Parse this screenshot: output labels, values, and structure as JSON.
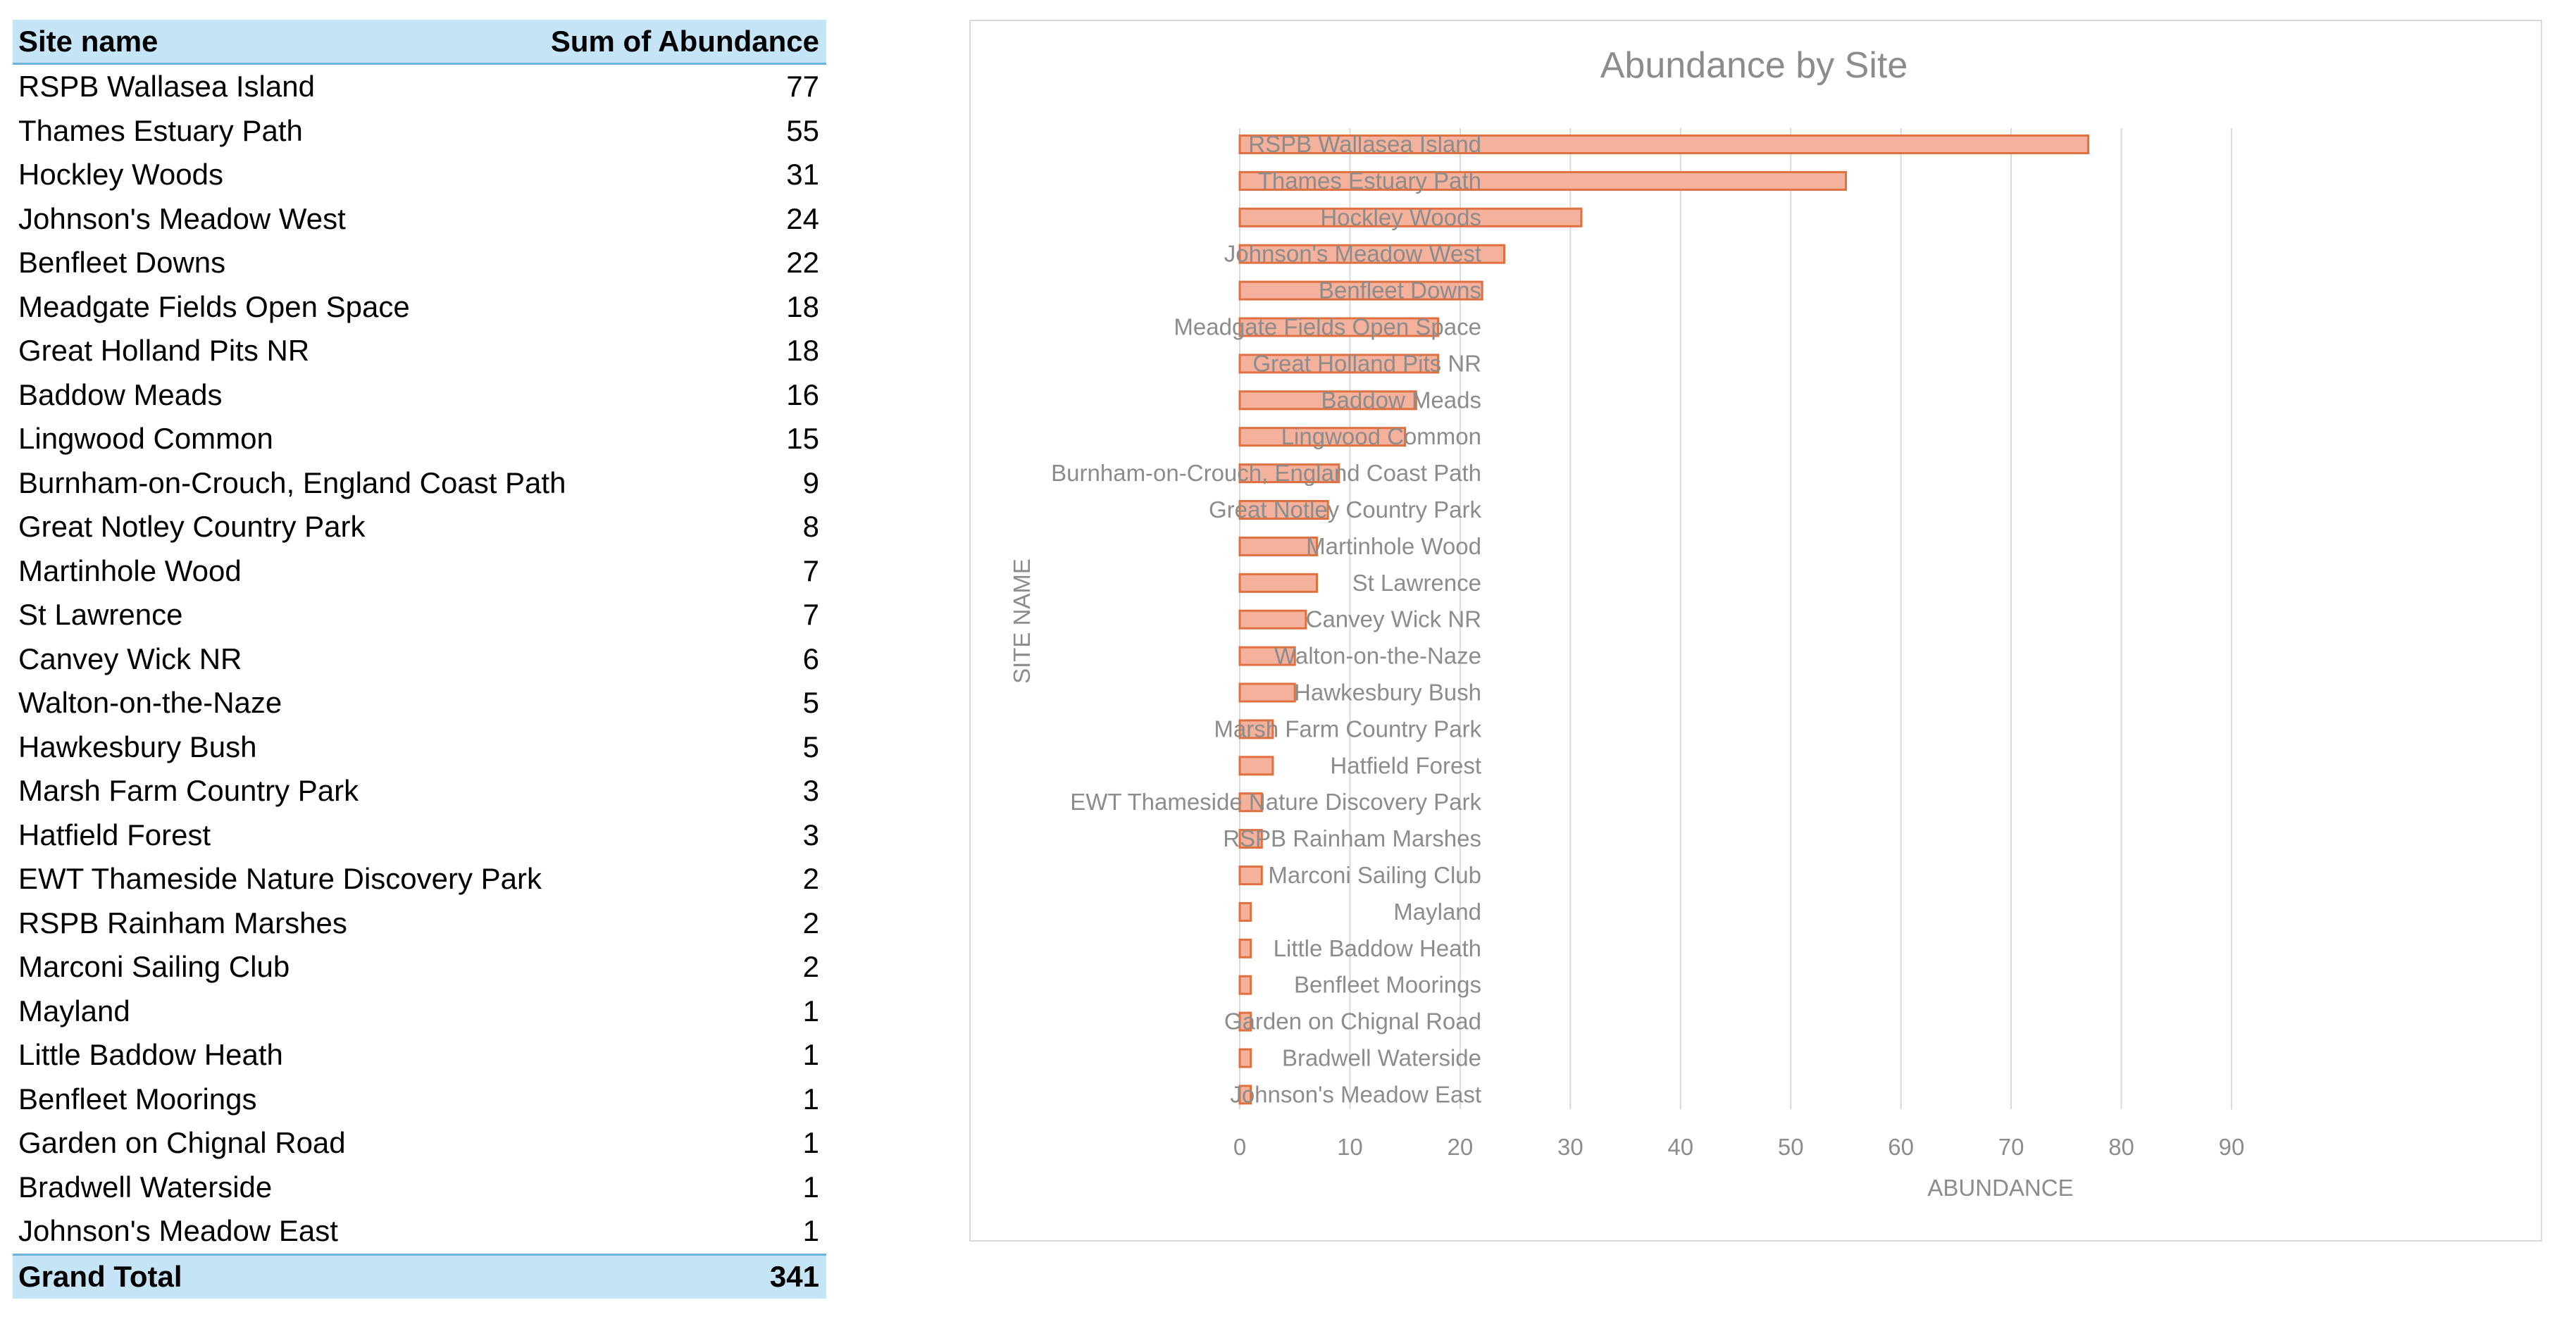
{
  "pivot": {
    "header": {
      "label": "Site name",
      "value": "Sum of Abundance"
    },
    "rows": [
      {
        "label": "RSPB Wallasea Island",
        "value": "77"
      },
      {
        "label": "Thames Estuary Path",
        "value": "55"
      },
      {
        "label": "Hockley Woods",
        "value": "31"
      },
      {
        "label": "Johnson's Meadow West",
        "value": "24"
      },
      {
        "label": "Benfleet Downs",
        "value": "22"
      },
      {
        "label": "Meadgate Fields Open Space",
        "value": "18"
      },
      {
        "label": "Great Holland Pits NR",
        "value": "18"
      },
      {
        "label": "Baddow Meads",
        "value": "16"
      },
      {
        "label": "Lingwood Common",
        "value": "15"
      },
      {
        "label": "Burnham-on-Crouch, England Coast Path",
        "value": "9"
      },
      {
        "label": "Great Notley Country Park",
        "value": "8"
      },
      {
        "label": "Martinhole Wood",
        "value": "7"
      },
      {
        "label": "St Lawrence",
        "value": "7"
      },
      {
        "label": "Canvey Wick NR",
        "value": "6"
      },
      {
        "label": "Walton-on-the-Naze",
        "value": "5"
      },
      {
        "label": "Hawkesbury Bush",
        "value": "5"
      },
      {
        "label": "Marsh Farm Country Park",
        "value": "3"
      },
      {
        "label": "Hatfield Forest",
        "value": "3"
      },
      {
        "label": "EWT Thameside Nature Discovery Park",
        "value": "2"
      },
      {
        "label": "RSPB Rainham Marshes",
        "value": "2"
      },
      {
        "label": "Marconi Sailing Club",
        "value": "2"
      },
      {
        "label": "Mayland",
        "value": "1"
      },
      {
        "label": "Little Baddow Heath",
        "value": "1"
      },
      {
        "label": "Benfleet Moorings",
        "value": "1"
      },
      {
        "label": "Garden on Chignal Road",
        "value": "1"
      },
      {
        "label": "Bradwell Waterside",
        "value": "1"
      },
      {
        "label": "Johnson's Meadow East",
        "value": "1"
      }
    ],
    "total": {
      "label": "Grand Total",
      "value": "341"
    }
  },
  "colors": {
    "header_bg": "#c5e5f6",
    "header_border": "#6cb4de",
    "bar_fill": "#f4b19b",
    "bar_stroke": "#e0703f",
    "gridline": "#d9d9d9",
    "chart_text": "#8c8c8c"
  },
  "chart_data": {
    "type": "bar",
    "orientation": "horizontal",
    "title": "Abundance by Site",
    "xlabel": "ABUNDANCE",
    "ylabel": "SITE NAME",
    "xlim": [
      0,
      90
    ],
    "xticks": [
      0,
      10,
      20,
      30,
      40,
      50,
      60,
      70,
      80,
      90
    ],
    "grid": "vertical",
    "legend": "none",
    "categories": [
      "RSPB Wallasea Island",
      "Thames Estuary Path",
      "Hockley Woods",
      "Johnson's Meadow West",
      "Benfleet Downs",
      "Meadgate Fields Open Space",
      "Great Holland Pits NR",
      "Baddow Meads",
      "Lingwood Common",
      "Burnham-on-Crouch, England Coast Path",
      "Great Notley Country Park",
      "Martinhole Wood",
      "St Lawrence",
      "Canvey Wick NR",
      "Walton-on-the-Naze",
      "Hawkesbury Bush",
      "Marsh Farm Country Park",
      "Hatfield Forest",
      "EWT Thameside Nature Discovery Park",
      "RSPB Rainham Marshes",
      "Marconi Sailing Club",
      "Mayland",
      "Little Baddow Heath",
      "Benfleet Moorings",
      "Garden on Chignal Road",
      "Bradwell Waterside",
      "Johnson's Meadow East"
    ],
    "values": [
      77,
      55,
      31,
      24,
      22,
      18,
      18,
      16,
      15,
      9,
      8,
      7,
      7,
      6,
      5,
      5,
      3,
      3,
      2,
      2,
      2,
      1,
      1,
      1,
      1,
      1,
      1
    ]
  }
}
